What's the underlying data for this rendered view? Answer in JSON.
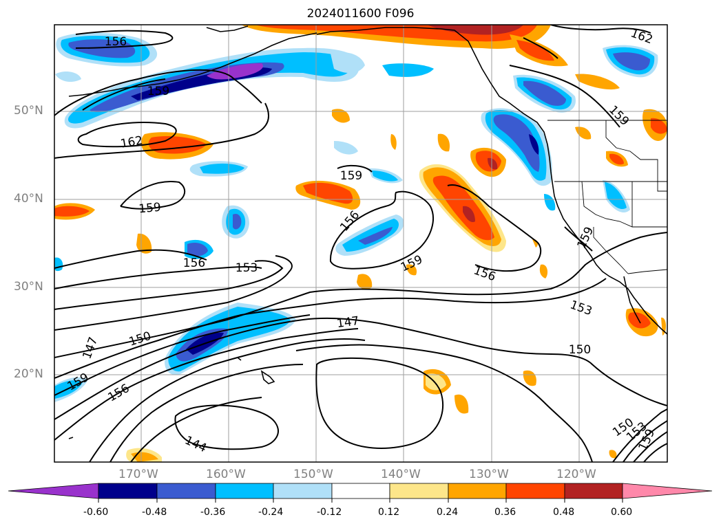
{
  "title": "2024011600 F096",
  "latitude_labels": [
    "50°N",
    "40°N",
    "30°N",
    "20°N"
  ],
  "longitude_labels": [
    "170°W",
    "160°W",
    "150°W",
    "140°W",
    "130°W",
    "120°W"
  ],
  "colorbar": {
    "ticks": [
      "-0.60",
      "-0.48",
      "-0.36",
      "-0.24",
      "-0.12",
      "0.12",
      "0.24",
      "0.36",
      "0.48",
      "0.60"
    ],
    "colors": [
      "#9932cc",
      "#00008b",
      "#3a5bd0",
      "#00bfff",
      "#b0e0f8",
      "#ffffff",
      "#fde68a",
      "#ffa500",
      "#ff4500",
      "#b22222",
      "#ff88aa"
    ]
  },
  "contour_labels": [
    "156",
    "159",
    "162",
    "162",
    "159",
    "159",
    "159",
    "156",
    "156",
    "153",
    "159",
    "156",
    "159",
    "153",
    "147",
    "150",
    "150",
    "147",
    "159",
    "156",
    "144",
    "150",
    "153",
    "159"
  ]
}
